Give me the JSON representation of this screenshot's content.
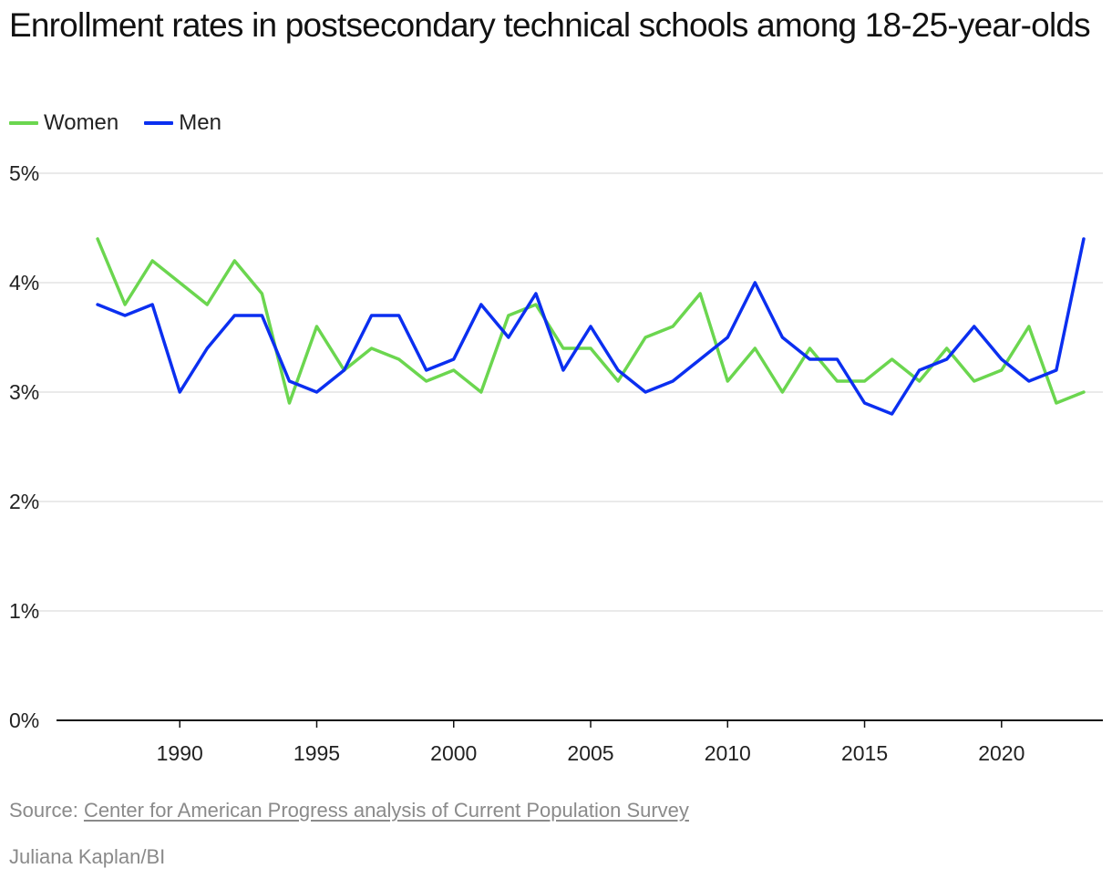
{
  "chart_data": {
    "type": "line",
    "title": "Enrollment rates in postsecondary technical schools among 18-25-year-olds",
    "x": [
      1987,
      1988,
      1989,
      1990,
      1991,
      1992,
      1993,
      1994,
      1995,
      1996,
      1997,
      1998,
      1999,
      2000,
      2001,
      2002,
      2003,
      2004,
      2005,
      2006,
      2007,
      2008,
      2009,
      2010,
      2011,
      2012,
      2013,
      2014,
      2015,
      2016,
      2017,
      2018,
      2019,
      2020,
      2021,
      2022,
      2023
    ],
    "series": [
      {
        "name": "Women",
        "color": "#6bd64f",
        "values": [
          4.4,
          3.8,
          4.2,
          4.0,
          3.8,
          4.2,
          3.9,
          2.9,
          3.6,
          3.2,
          3.4,
          3.3,
          3.1,
          3.2,
          3.0,
          3.7,
          3.8,
          3.4,
          3.4,
          3.1,
          3.5,
          3.6,
          3.9,
          3.1,
          3.4,
          3.0,
          3.4,
          3.1,
          3.1,
          3.3,
          3.1,
          3.4,
          3.1,
          3.2,
          3.6,
          2.9,
          3.0
        ]
      },
      {
        "name": "Men",
        "color": "#0b2ff0",
        "values": [
          3.8,
          3.7,
          3.8,
          3.0,
          3.4,
          3.7,
          3.7,
          3.1,
          3.0,
          3.2,
          3.7,
          3.7,
          3.2,
          3.3,
          3.8,
          3.5,
          3.9,
          3.2,
          3.6,
          3.2,
          3.0,
          3.1,
          3.3,
          3.5,
          4.0,
          3.5,
          3.3,
          3.3,
          2.9,
          2.8,
          3.2,
          3.3,
          3.6,
          3.3,
          3.1,
          3.2,
          4.4
        ]
      }
    ],
    "xticks": [
      1990,
      1995,
      2000,
      2005,
      2010,
      2015,
      2020
    ],
    "xtick_labels": [
      "1990",
      "1995",
      "2000",
      "2005",
      "2010",
      "2015",
      "2020"
    ],
    "yticks": [
      0,
      1,
      2,
      3,
      4,
      5
    ],
    "ytick_labels": [
      "0%",
      "1%",
      "2%",
      "3%",
      "4%",
      "5%"
    ],
    "xlim": [
      1985.5,
      2023.7
    ],
    "ylim": [
      0,
      5
    ],
    "xlabel": "",
    "ylabel": "",
    "legend": "top-left",
    "grid": true
  },
  "footer": {
    "source_prefix": "Source: ",
    "source_link": "Center for American Progress analysis of Current Population Survey",
    "credit": "Juliana Kaplan/BI"
  }
}
